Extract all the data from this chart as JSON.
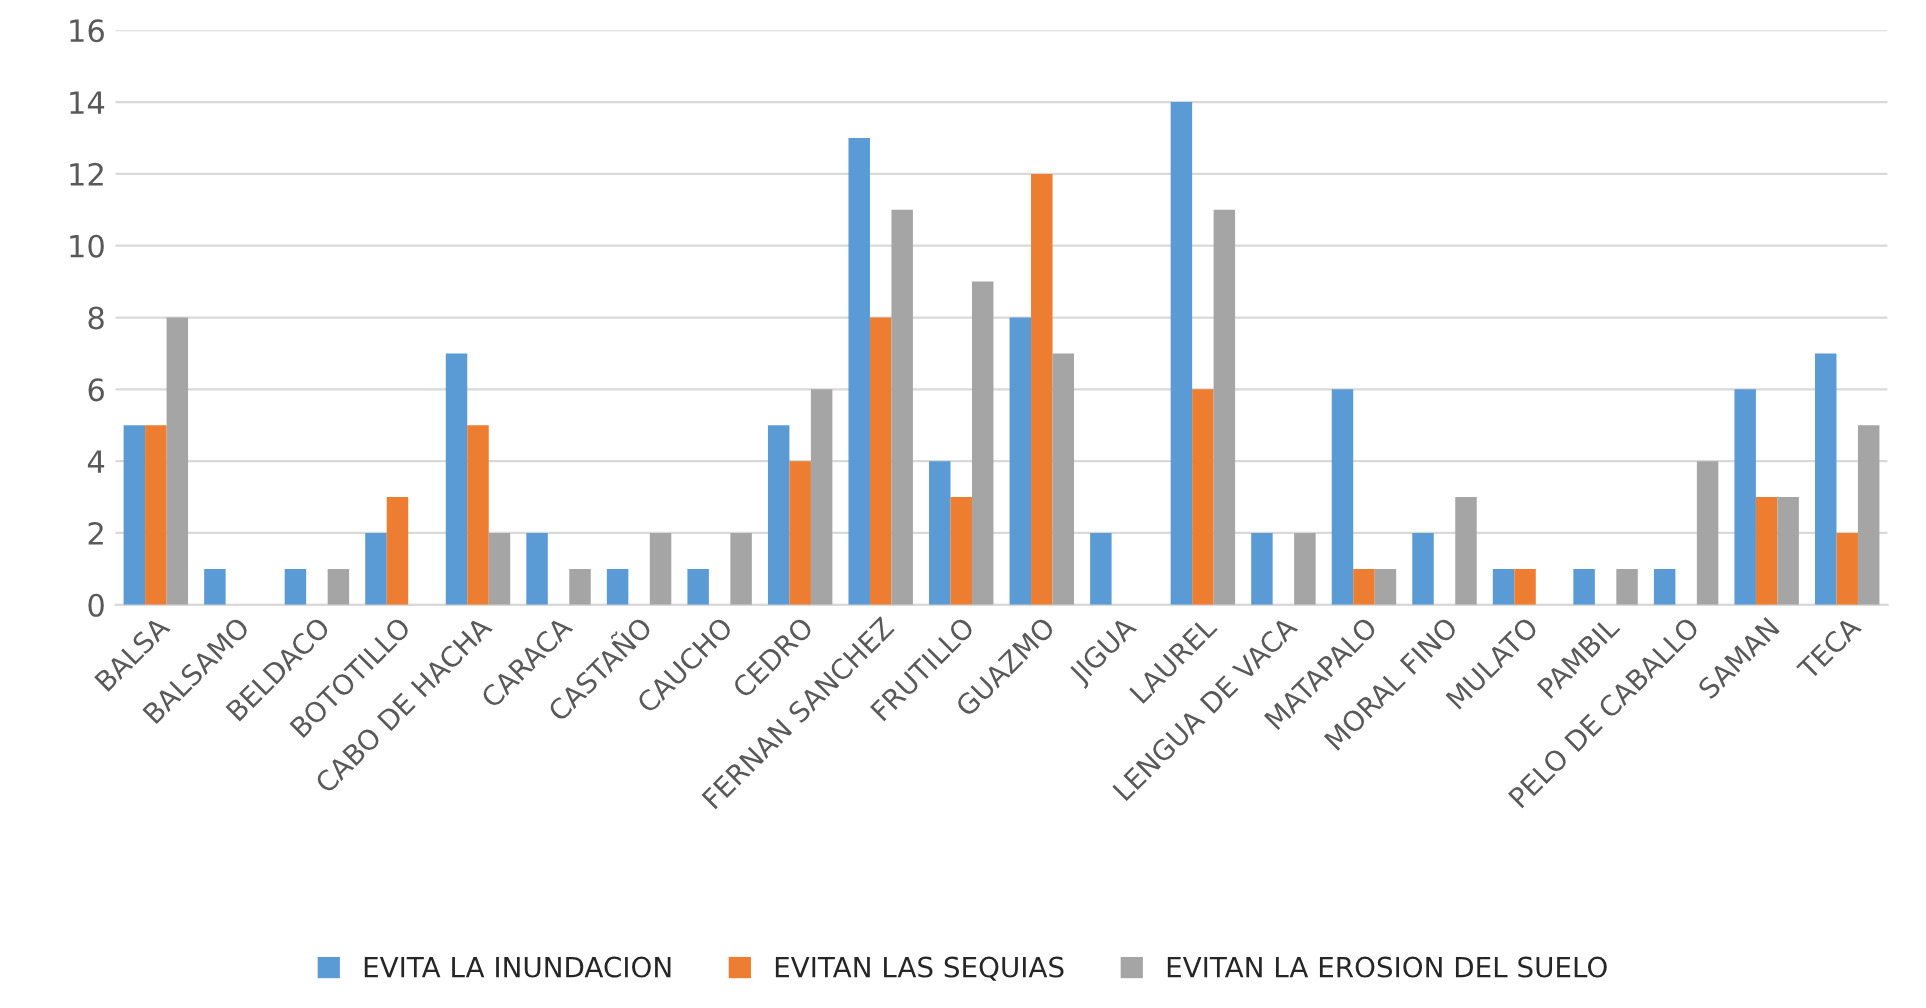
{
  "chart_data": {
    "type": "bar",
    "categories": [
      "BALSA",
      "BALSAMO",
      "BELDACO",
      "BOTOTILLO",
      "CABO DE HACHA",
      "CARACA",
      "CASTAÑO",
      "CAUCHO",
      "CEDRO",
      "FERNAN SANCHEZ",
      "FRUTILLO",
      "GUAZMO",
      "JIGUA",
      "LAUREL",
      "LENGUA DE VACA",
      "MATAPALO",
      "MORAL FINO",
      "MULATO",
      "PAMBIL",
      "PELO DE CABALLO",
      "SAMAN",
      "TECA"
    ],
    "series": [
      {
        "name": "EVITA LA INUNDACION",
        "color": "#5b9bd5",
        "values": [
          5,
          1,
          1,
          2,
          7,
          2,
          1,
          1,
          5,
          13,
          4,
          8,
          2,
          14,
          2,
          6,
          2,
          1,
          1,
          1,
          6,
          7
        ]
      },
      {
        "name": "EVITAN LAS SEQUIAS",
        "color": "#ed7d31",
        "values": [
          5,
          null,
          null,
          3,
          5,
          null,
          null,
          null,
          4,
          8,
          3,
          12,
          null,
          6,
          null,
          1,
          null,
          1,
          null,
          null,
          3,
          2
        ]
      },
      {
        "name": "EVITAN LA EROSION DEL SUELO",
        "color": "#a5a5a5",
        "values": [
          8,
          null,
          1,
          null,
          2,
          1,
          2,
          2,
          6,
          11,
          9,
          7,
          null,
          11,
          2,
          1,
          3,
          null,
          1,
          4,
          3,
          5
        ]
      }
    ],
    "ylim": [
      0,
      16
    ],
    "yticks": [
      0,
      2,
      4,
      6,
      8,
      10,
      12,
      14,
      16
    ],
    "grid": "y",
    "legend": "bottom"
  }
}
